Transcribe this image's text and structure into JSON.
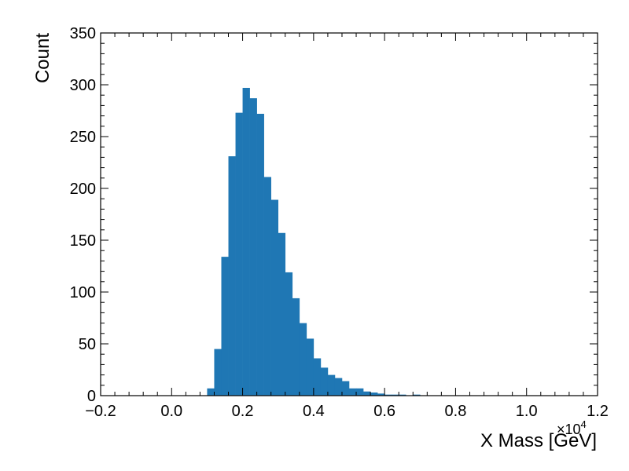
{
  "chart_data": {
    "type": "bar",
    "xlabel": "X Mass [GeV]",
    "ylabel": "Count",
    "x_offset_label": "×10",
    "x_offset_exponent": "4",
    "xlim": [
      -0.2,
      1.2
    ],
    "ylim": [
      0,
      350
    ],
    "x_ticks": [
      -0.2,
      0.0,
      0.2,
      0.4,
      0.6,
      0.8,
      1.0,
      1.2
    ],
    "x_tick_labels": [
      "−0.2",
      "0.0",
      "0.2",
      "0.4",
      "0.6",
      "0.8",
      "1.0",
      "1.2"
    ],
    "y_ticks": [
      0,
      50,
      100,
      150,
      200,
      250,
      300,
      350
    ],
    "y_tick_labels": [
      "0",
      "50",
      "100",
      "150",
      "200",
      "250",
      "300",
      "350"
    ],
    "x_minor_step": 0.04,
    "y_minor_step": 10,
    "grid": false,
    "color": "#1f77b4",
    "bin_width": 0.02,
    "bins": [
      {
        "x0": 0.1,
        "value": 7
      },
      {
        "x0": 0.12,
        "value": 45
      },
      {
        "x0": 0.14,
        "value": 134
      },
      {
        "x0": 0.16,
        "value": 231
      },
      {
        "x0": 0.18,
        "value": 273
      },
      {
        "x0": 0.2,
        "value": 297
      },
      {
        "x0": 0.22,
        "value": 287
      },
      {
        "x0": 0.24,
        "value": 272
      },
      {
        "x0": 0.26,
        "value": 211
      },
      {
        "x0": 0.28,
        "value": 189
      },
      {
        "x0": 0.3,
        "value": 157
      },
      {
        "x0": 0.32,
        "value": 119
      },
      {
        "x0": 0.34,
        "value": 94
      },
      {
        "x0": 0.36,
        "value": 70
      },
      {
        "x0": 0.38,
        "value": 55
      },
      {
        "x0": 0.4,
        "value": 36
      },
      {
        "x0": 0.42,
        "value": 27
      },
      {
        "x0": 0.44,
        "value": 20
      },
      {
        "x0": 0.46,
        "value": 17
      },
      {
        "x0": 0.48,
        "value": 14
      },
      {
        "x0": 0.5,
        "value": 7
      },
      {
        "x0": 0.52,
        "value": 7
      },
      {
        "x0": 0.54,
        "value": 4
      },
      {
        "x0": 0.56,
        "value": 3
      },
      {
        "x0": 0.58,
        "value": 2
      },
      {
        "x0": 0.6,
        "value": 1
      },
      {
        "x0": 0.62,
        "value": 1
      },
      {
        "x0": 0.64,
        "value": 1
      },
      {
        "x0": 0.68,
        "value": 1
      }
    ]
  }
}
